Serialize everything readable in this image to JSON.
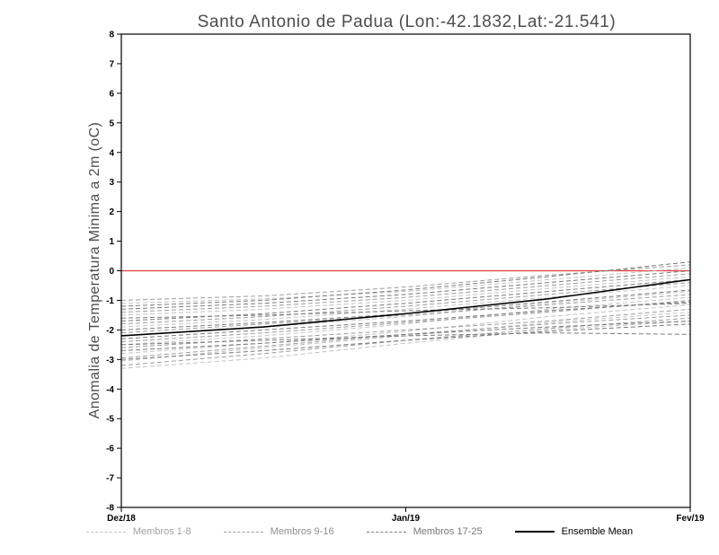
{
  "chart_data": {
    "type": "line",
    "title": "Santo Antonio de Padua (Lon:-42.1832,Lat:-21.541)",
    "ylabel": "Anomalia de Temperatura Minima a 2m (oC)",
    "xlabel": "",
    "x_tick_labels": [
      "Dez/18",
      "Jan/19",
      "Fev/19"
    ],
    "ylim": [
      -8,
      8
    ],
    "y_tick_step": 1,
    "x_points": 5,
    "grid": false,
    "axis_color": "#000000",
    "title_color": "#4d4d4d",
    "zero_line": {
      "value": 0,
      "color": "#e23b3b"
    },
    "groups": [
      {
        "name": "Membros 1-8",
        "color": "#c2c2c2",
        "style": "dashed",
        "members": [
          [
            -3.3,
            -2.95,
            -2.45,
            -2.0,
            -1.7
          ],
          [
            -3.05,
            -2.6,
            -2.2,
            -1.75,
            -1.4
          ],
          [
            -2.8,
            -2.45,
            -2.05,
            -1.55,
            -1.15
          ],
          [
            -2.5,
            -2.2,
            -1.8,
            -1.3,
            -0.9
          ],
          [
            -2.2,
            -1.9,
            -1.55,
            -1.1,
            -0.7
          ],
          [
            -1.9,
            -1.65,
            -1.3,
            -0.9,
            -0.5
          ],
          [
            -1.5,
            -1.3,
            -1.0,
            -0.6,
            -0.2
          ],
          [
            -1.1,
            -0.95,
            -0.7,
            -0.3,
            0.1
          ]
        ]
      },
      {
        "name": "Membros 9-16",
        "color": "#9c9c9c",
        "style": "dashed",
        "members": [
          [
            -3.2,
            -2.8,
            -2.35,
            -1.95,
            -1.6
          ],
          [
            -2.95,
            -2.55,
            -2.15,
            -1.8,
            -1.5
          ],
          [
            -2.6,
            -2.3,
            -2.0,
            -1.7,
            -1.3
          ],
          [
            -2.4,
            -2.1,
            -1.75,
            -1.4,
            -1.0
          ],
          [
            -2.1,
            -1.8,
            -1.5,
            -1.15,
            -0.8
          ],
          [
            -1.8,
            -1.55,
            -1.2,
            -0.8,
            -0.4
          ],
          [
            -1.4,
            -1.2,
            -0.9,
            -0.5,
            -0.1
          ],
          [
            -1.0,
            -0.85,
            -0.55,
            -0.15,
            0.2
          ]
        ]
      },
      {
        "name": "Membros 17-25",
        "color": "#7a7a7a",
        "style": "dashed",
        "members": [
          [
            -3.0,
            -2.7,
            -2.35,
            -2.05,
            -1.8
          ],
          [
            -2.7,
            -2.45,
            -2.15,
            -1.9,
            -1.7
          ],
          [
            -2.5,
            -2.35,
            -2.2,
            -2.1,
            -2.15
          ],
          [
            -2.3,
            -2.0,
            -1.7,
            -1.35,
            -1.05
          ],
          [
            -2.0,
            -1.75,
            -1.45,
            -1.05,
            -0.65
          ],
          [
            -1.7,
            -1.45,
            -1.1,
            -0.7,
            -0.3
          ],
          [
            -1.3,
            -1.1,
            -0.8,
            -0.4,
            0.0
          ],
          [
            -1.2,
            -1.0,
            -0.65,
            -0.2,
            0.3
          ],
          [
            -1.6,
            -1.5,
            -1.35,
            -1.25,
            -1.1
          ]
        ]
      }
    ],
    "mean": {
      "name": "Ensemble Mean",
      "color": "#000000",
      "style": "solid",
      "values": [
        -2.2,
        -1.9,
        -1.45,
        -0.95,
        -0.3
      ]
    },
    "legend": [
      {
        "label": "Membros 1-8",
        "color": "#c2c2c2",
        "text_color": "#a2a2a2",
        "style": "dashed"
      },
      {
        "label": "Membros 9-16",
        "color": "#9c9c9c",
        "text_color": "#8e8e8e",
        "style": "dashed"
      },
      {
        "label": "Membros 17-25",
        "color": "#7a7a7a",
        "text_color": "#787878",
        "style": "dashed"
      },
      {
        "label": "Ensemble Mean",
        "color": "#000000",
        "text_color": "#000000",
        "style": "solid"
      }
    ]
  }
}
